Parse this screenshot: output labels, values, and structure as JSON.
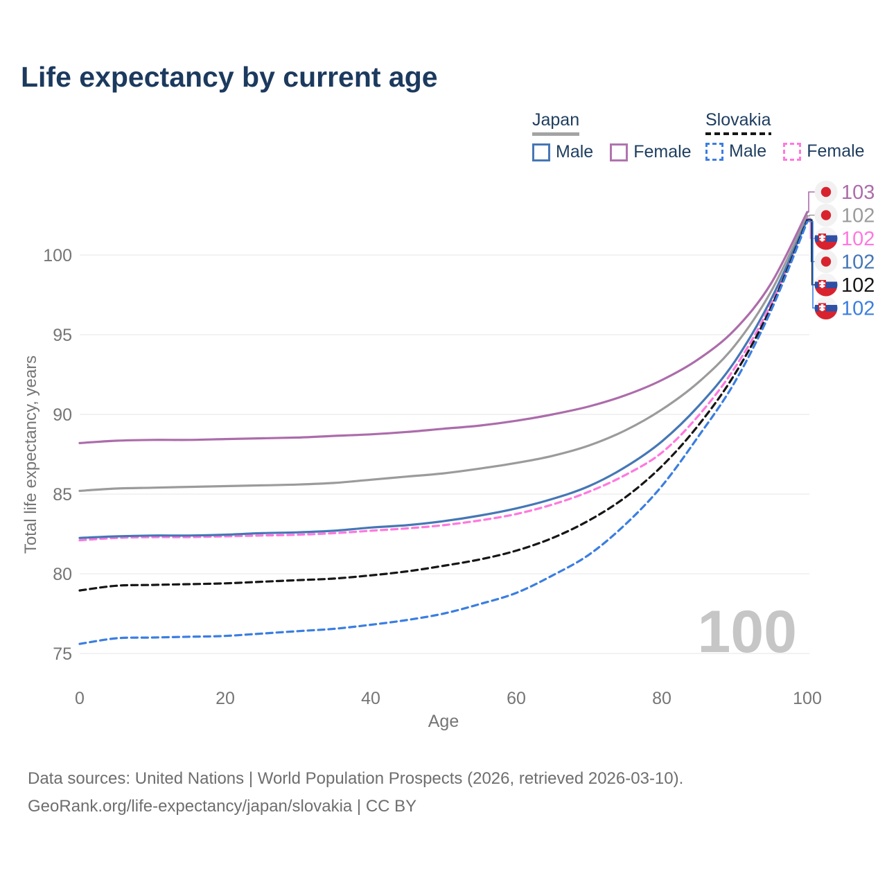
{
  "title": "Life expectancy by current age",
  "legend": {
    "groups": [
      {
        "label": "Japan",
        "line_style": "solid",
        "underline_color": "#a3a3a3",
        "items": [
          {
            "label": "Male",
            "color": "#4577b5",
            "dash": false
          },
          {
            "label": "Female",
            "color": "#b173ae",
            "dash": false
          }
        ]
      },
      {
        "label": "Slovakia",
        "line_style": "dashed",
        "underline_color": "#161616",
        "items": [
          {
            "label": "Male",
            "color": "#3b7ee0",
            "dash": true
          },
          {
            "label": "Female",
            "color": "#ff78de",
            "dash": true
          }
        ]
      }
    ]
  },
  "chart_data": {
    "type": "line",
    "title": "Life expectancy by current age",
    "xlabel": "Age",
    "ylabel": "Total life expectancy, years",
    "xlim": [
      0,
      100
    ],
    "ylim": [
      75,
      103
    ],
    "x_ticks": [
      0,
      20,
      40,
      60,
      80,
      100
    ],
    "y_ticks": [
      75,
      80,
      85,
      90,
      95,
      100
    ],
    "grid": "horizontal",
    "x": [
      0,
      5,
      10,
      15,
      20,
      25,
      30,
      35,
      40,
      45,
      50,
      55,
      60,
      65,
      70,
      75,
      80,
      85,
      90,
      95,
      100
    ],
    "series": [
      {
        "name": "Japan Female",
        "country": "Japan",
        "sex": "Female",
        "color": "#ac6cab",
        "dash": "solid",
        "values": [
          88.2,
          88.35,
          88.4,
          88.4,
          88.45,
          88.5,
          88.55,
          88.65,
          88.75,
          88.9,
          89.1,
          89.3,
          89.6,
          90.0,
          90.5,
          91.2,
          92.15,
          93.45,
          95.3,
          98.2,
          102.7
        ]
      },
      {
        "name": "Japan Both sexes",
        "country": "Japan",
        "sex": "Both",
        "color": "#9b9b9b",
        "dash": "solid",
        "values": [
          85.2,
          85.35,
          85.4,
          85.45,
          85.5,
          85.55,
          85.6,
          85.7,
          85.9,
          86.1,
          86.3,
          86.6,
          86.95,
          87.4,
          88.05,
          89.0,
          90.3,
          92.0,
          94.3,
          97.7,
          102.45
        ]
      },
      {
        "name": "Slovakia Female",
        "country": "Slovakia",
        "sex": "Female",
        "color": "#ff78de",
        "dash": "dashed",
        "values": [
          82.1,
          82.25,
          82.3,
          82.3,
          82.35,
          82.4,
          82.45,
          82.55,
          82.7,
          82.85,
          83.05,
          83.35,
          83.75,
          84.35,
          85.15,
          86.2,
          87.6,
          89.9,
          92.9,
          96.9,
          102.3
        ]
      },
      {
        "name": "Japan Male",
        "country": "Japan",
        "sex": "Male",
        "color": "#4577b5",
        "dash": "solid",
        "values": [
          82.25,
          82.35,
          82.4,
          82.4,
          82.45,
          82.55,
          82.6,
          82.7,
          82.9,
          83.05,
          83.3,
          83.65,
          84.1,
          84.7,
          85.5,
          86.7,
          88.3,
          90.5,
          93.3,
          97.2,
          102.25
        ]
      },
      {
        "name": "Slovakia Both sexes",
        "country": "Slovakia",
        "sex": "Both",
        "color": "#161616",
        "dash": "dashed",
        "values": [
          78.95,
          79.25,
          79.3,
          79.35,
          79.4,
          79.5,
          79.6,
          79.7,
          79.9,
          80.15,
          80.5,
          80.9,
          81.45,
          82.25,
          83.35,
          84.8,
          86.75,
          89.3,
          92.5,
          96.7,
          102.2
        ]
      },
      {
        "name": "Slovakia Male",
        "country": "Slovakia",
        "sex": "Male",
        "color": "#3b7ee0",
        "dash": "dashed",
        "values": [
          75.6,
          75.95,
          76.0,
          76.05,
          76.1,
          76.25,
          76.4,
          76.55,
          76.8,
          77.1,
          77.5,
          78.1,
          78.8,
          79.9,
          81.2,
          83.1,
          85.5,
          88.6,
          92.0,
          96.5,
          102.1
        ]
      }
    ],
    "end_labels": [
      {
        "value": "103",
        "flag": "japan",
        "color": "#ac6cab",
        "series": "Japan Female"
      },
      {
        "value": "102",
        "flag": "japan",
        "color": "#9b9b9b",
        "series": "Japan Both sexes"
      },
      {
        "value": "102",
        "flag": "slovakia",
        "color": "#ff78de",
        "series": "Slovakia Female"
      },
      {
        "value": "102",
        "flag": "japan",
        "color": "#4577b5",
        "series": "Japan Male"
      },
      {
        "value": "102",
        "flag": "slovakia",
        "color": "#161616",
        "series": "Slovakia Both sexes"
      },
      {
        "value": "102",
        "flag": "slovakia",
        "color": "#3b7ee0",
        "series": "Slovakia Male"
      }
    ],
    "watermark": "100",
    "legend_position": "top-right"
  },
  "footer": {
    "line1": "Data sources: United Nations | World Population Prospects (2026, retrieved 2026-03-10).",
    "line2": "GeoRank.org/life-expectancy/japan/slovakia | CC BY"
  },
  "colors": {
    "title_text": "#1c3a5e",
    "axis_text": "#757575",
    "gridline": "#ebebeb",
    "watermark": "#c6c6c6",
    "footer_text": "#6e6e6e",
    "japan_flag_red": "#d8232f",
    "slovakia_blue": "#2e4fa3",
    "slovakia_red": "#d8232f"
  }
}
